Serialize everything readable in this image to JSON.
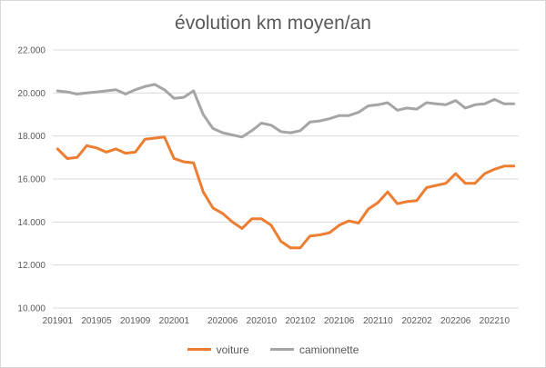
{
  "chart_data": {
    "type": "line",
    "title": "évolution km moyen/an",
    "ylim": [
      10000,
      22000
    ],
    "y_ticks": [
      "10.000",
      "12.000",
      "14.000",
      "16.000",
      "18.000",
      "20.000",
      "22.000"
    ],
    "y_tick_values": [
      10000,
      12000,
      14000,
      16000,
      18000,
      20000,
      22000
    ],
    "x": [
      "201901",
      "201902",
      "201903",
      "201904",
      "201905",
      "201906",
      "201907",
      "201908",
      "201909",
      "201910",
      "201911",
      "201912",
      "202001",
      "202002",
      "202003",
      "202004",
      "202005",
      "202006",
      "202007",
      "202008",
      "202009",
      "202010",
      "202011",
      "202012",
      "202101",
      "202102",
      "202103",
      "202104",
      "202105",
      "202106",
      "202107",
      "202108",
      "202109",
      "202110",
      "202111",
      "202112",
      "202201",
      "202202",
      "202203",
      "202204",
      "202205",
      "202206",
      "202207",
      "202208",
      "202209",
      "202210",
      "202211",
      "202212"
    ],
    "x_tick_labels": [
      "201901",
      "201905",
      "201909",
      "202001",
      "202006",
      "202010",
      "202102",
      "202106",
      "202110",
      "202202",
      "202206",
      "202210"
    ],
    "gridlines": true,
    "legend_position": "bottom",
    "series": [
      {
        "name": "voiture",
        "color": "#ed7d31",
        "values": [
          17400,
          16950,
          17000,
          17550,
          17450,
          17250,
          17400,
          17200,
          17250,
          17850,
          17900,
          17950,
          16950,
          16800,
          16750,
          15400,
          14650,
          14400,
          14000,
          13700,
          14150,
          14150,
          13850,
          13100,
          12800,
          12800,
          13350,
          13400,
          13500,
          13850,
          14050,
          13950,
          14600,
          14900,
          15400,
          14850,
          14950,
          15000,
          15600,
          15700,
          15800,
          16250,
          15800,
          15800,
          16250,
          16450,
          16600,
          16600
        ]
      },
      {
        "name": "camionnette",
        "color": "#a5a5a5",
        "values": [
          20100,
          20050,
          19950,
          20000,
          20050,
          20100,
          20150,
          19950,
          20150,
          20300,
          20400,
          20150,
          19750,
          19800,
          20100,
          19000,
          18350,
          18150,
          18050,
          17950,
          18250,
          18600,
          18500,
          18200,
          18150,
          18250,
          18650,
          18700,
          18800,
          18950,
          18950,
          19100,
          19400,
          19450,
          19550,
          19200,
          19300,
          19250,
          19550,
          19500,
          19450,
          19650,
          19300,
          19450,
          19500,
          19700,
          19500,
          19500
        ]
      }
    ]
  }
}
